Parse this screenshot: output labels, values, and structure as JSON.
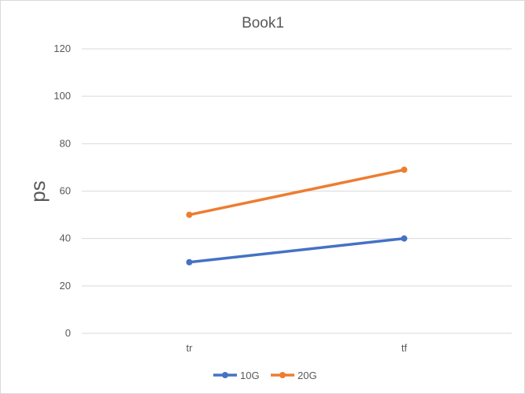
{
  "chart_data": {
    "type": "line",
    "title": "Book1",
    "xlabel": "",
    "ylabel": "ps",
    "categories": [
      "tr",
      "tf"
    ],
    "series": [
      {
        "name": "10G",
        "values": [
          30,
          40
        ],
        "color": "#4472C4"
      },
      {
        "name": "20G",
        "values": [
          50,
          69
        ],
        "color": "#ED7D31"
      }
    ],
    "ylim": [
      0,
      120
    ],
    "yticks": [
      0,
      20,
      40,
      60,
      80,
      100,
      120
    ],
    "grid": true,
    "legend": "bottom-center",
    "background": "#ffffff",
    "gridColor": "#d9d9d9",
    "textColor": "#595959"
  }
}
